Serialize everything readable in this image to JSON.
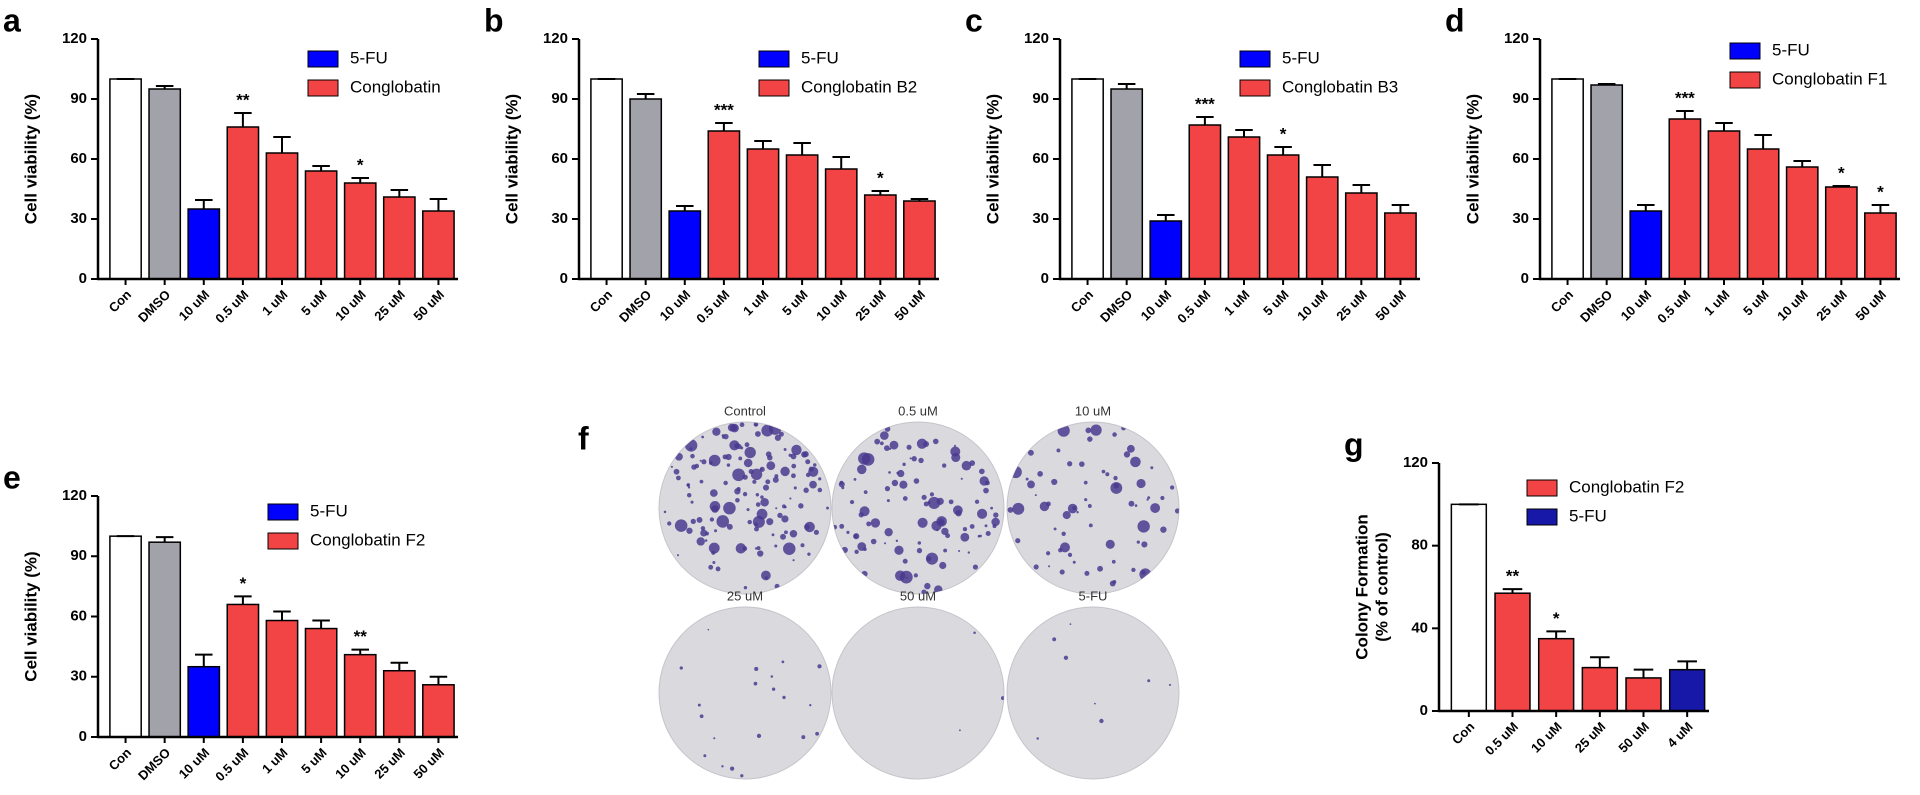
{
  "chart_data": [
    {
      "panel": "a",
      "type": "bar",
      "ylabel": "Cell viability (%)",
      "categories": [
        "Con",
        "DMSO",
        "10 uM",
        "0.5 uM",
        "1 uM",
        "5 uM",
        "10 uM",
        "25 uM",
        "50 uM"
      ],
      "values": [
        100,
        95,
        35,
        76,
        63,
        54,
        48,
        41,
        34
      ],
      "errors": [
        0,
        1.5,
        4.5,
        7,
        8,
        2.5,
        2.5,
        3.5,
        6
      ],
      "colors": [
        "#ffffff",
        "#a2a2aa",
        "#0000ff",
        "#f24444",
        "#f24444",
        "#f24444",
        "#f24444",
        "#f24444",
        "#f24444"
      ],
      "significance": [
        null,
        null,
        null,
        "**",
        null,
        null,
        "*",
        null,
        null
      ],
      "ylim": [
        0,
        120
      ],
      "yticks": [
        0,
        30,
        60,
        90,
        120
      ],
      "legend": [
        {
          "name": "5-FU",
          "color": "#0000ff"
        },
        {
          "name": "Conglobatin",
          "color": "#f24444"
        }
      ]
    },
    {
      "panel": "b",
      "type": "bar",
      "ylabel": "Cell viability (%)",
      "categories": [
        "Con",
        "DMSO",
        "10 uM",
        "0.5 uM",
        "1 uM",
        "5 uM",
        "10 uM",
        "25 uM",
        "50 uM"
      ],
      "values": [
        100,
        90,
        34,
        74,
        65,
        62,
        55,
        42,
        39
      ],
      "errors": [
        0,
        2.5,
        2.5,
        4,
        4,
        6,
        6,
        2,
        1
      ],
      "colors": [
        "#ffffff",
        "#a2a2aa",
        "#0000ff",
        "#f24444",
        "#f24444",
        "#f24444",
        "#f24444",
        "#f24444",
        "#f24444"
      ],
      "significance": [
        null,
        null,
        null,
        "***",
        null,
        null,
        null,
        "*",
        null
      ],
      "ylim": [
        0,
        120
      ],
      "yticks": [
        0,
        30,
        60,
        90,
        120
      ],
      "legend": [
        {
          "name": "5-FU",
          "color": "#0000ff"
        },
        {
          "name": "Conglobatin B2",
          "color": "#f24444"
        }
      ]
    },
    {
      "panel": "c",
      "type": "bar",
      "ylabel": "Cell viability (%)",
      "categories": [
        "Con",
        "DMSO",
        "10 uM",
        "0.5 uM",
        "1 uM",
        "5 uM",
        "10 uM",
        "25 uM",
        "50 uM"
      ],
      "values": [
        100,
        95,
        29,
        77,
        71,
        62,
        51,
        43,
        33
      ],
      "errors": [
        0,
        2.5,
        3,
        4,
        3.5,
        4,
        6,
        4,
        4
      ],
      "colors": [
        "#ffffff",
        "#a2a2aa",
        "#0000ff",
        "#f24444",
        "#f24444",
        "#f24444",
        "#f24444",
        "#f24444",
        "#f24444"
      ],
      "significance": [
        null,
        null,
        null,
        "***",
        null,
        "*",
        null,
        null,
        null
      ],
      "ylim": [
        0,
        120
      ],
      "yticks": [
        0,
        30,
        60,
        90,
        120
      ],
      "legend": [
        {
          "name": "5-FU",
          "color": "#0000ff"
        },
        {
          "name": "Conglobatin B3",
          "color": "#f24444"
        }
      ]
    },
    {
      "panel": "d",
      "type": "bar",
      "ylabel": "Cell viability (%)",
      "categories": [
        "Con",
        "DMSO",
        "10 uM",
        "0.5 uM",
        "1 uM",
        "5 uM",
        "10 uM",
        "25 uM",
        "50 uM"
      ],
      "values": [
        100,
        97,
        34,
        80,
        74,
        65,
        56,
        46,
        33
      ],
      "errors": [
        0,
        0.5,
        3,
        4,
        4,
        7,
        3,
        0.5,
        4
      ],
      "colors": [
        "#ffffff",
        "#a2a2aa",
        "#0000ff",
        "#f24444",
        "#f24444",
        "#f24444",
        "#f24444",
        "#f24444",
        "#f24444"
      ],
      "significance": [
        null,
        null,
        null,
        "***",
        null,
        null,
        null,
        "*",
        "*"
      ],
      "ylim": [
        0,
        120
      ],
      "yticks": [
        0,
        30,
        60,
        90,
        120
      ],
      "legend": [
        {
          "name": "5-FU",
          "color": "#0000ff"
        },
        {
          "name": "Conglobatin F1",
          "color": "#f24444"
        }
      ]
    },
    {
      "panel": "e",
      "type": "bar",
      "ylabel": "Cell viability (%)",
      "categories": [
        "Con",
        "DMSO",
        "10 uM",
        "0.5 uM",
        "1 uM",
        "5 uM",
        "10 uM",
        "25 uM",
        "50 uM"
      ],
      "values": [
        100,
        97,
        35,
        66,
        58,
        54,
        41,
        33,
        26
      ],
      "errors": [
        0,
        2.5,
        6,
        4,
        4.5,
        4,
        2.5,
        4,
        4
      ],
      "colors": [
        "#ffffff",
        "#a2a2aa",
        "#0000ff",
        "#f24444",
        "#f24444",
        "#f24444",
        "#f24444",
        "#f24444",
        "#f24444"
      ],
      "significance": [
        null,
        null,
        null,
        "*",
        null,
        null,
        "**",
        null,
        null
      ],
      "ylim": [
        0,
        120
      ],
      "yticks": [
        0,
        30,
        60,
        90,
        120
      ],
      "legend": [
        {
          "name": "5-FU",
          "color": "#0000ff"
        },
        {
          "name": "Conglobatin F2",
          "color": "#f24444"
        }
      ]
    },
    {
      "panel": "g",
      "type": "bar",
      "ylabel": [
        "Colony Formation",
        "(% of control)"
      ],
      "categories": [
        "Con",
        "0.5 uM",
        "10 uM",
        "25 uM",
        "50 uM",
        "4 uM"
      ],
      "values": [
        100,
        57,
        35,
        21,
        16,
        20
      ],
      "errors": [
        0,
        2,
        3.5,
        5,
        4,
        4
      ],
      "colors": [
        "#ffffff",
        "#f24444",
        "#f24444",
        "#f24444",
        "#f24444",
        "#1818a8"
      ],
      "significance": [
        null,
        "**",
        "*",
        null,
        null,
        null
      ],
      "ylim": [
        0,
        120
      ],
      "yticks": [
        0,
        40,
        80,
        120
      ],
      "legend": [
        {
          "name": "Conglobatin F2",
          "color": "#f24444"
        },
        {
          "name": "5-FU",
          "color": "#1818a8"
        }
      ]
    }
  ],
  "image_panel": {
    "panel": "f",
    "captions": [
      "Control",
      "0.5 uM",
      "10 uM",
      "25 uM",
      "50 uM",
      "5-FU"
    ]
  }
}
